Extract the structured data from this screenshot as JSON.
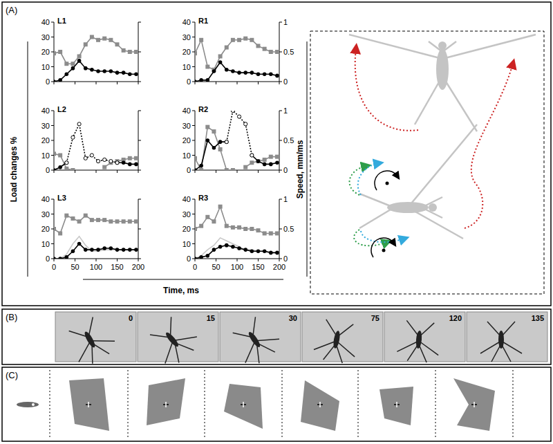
{
  "chart_data": [
    {
      "type": "line",
      "title": "L1",
      "x": [
        0,
        15,
        30,
        45,
        60,
        75,
        90,
        105,
        120,
        135,
        150,
        165,
        180,
        195
      ],
      "xlim": [
        0,
        200
      ],
      "xticks": [
        0,
        50,
        100,
        150,
        200
      ],
      "ylim": [
        0,
        40
      ],
      "yticks": [
        0,
        10,
        20,
        30,
        40
      ],
      "y2lim": [
        0,
        1
      ],
      "y2ticks": [
        0,
        0.5,
        1
      ],
      "series": [
        {
          "color": "#8c8c8c",
          "marker": "square",
          "values": [
            19,
            20,
            12,
            12,
            17,
            25,
            30,
            28,
            29,
            28,
            25,
            21,
            20,
            20
          ]
        },
        {
          "color": "#000000",
          "marker": "circle",
          "axis": "y2",
          "values": [
            0,
            0.025,
            0.125,
            0.225,
            0.35,
            0.225,
            0.2,
            0.175,
            0.175,
            0.175,
            0.15,
            0.15,
            0.125,
            0.125
          ]
        }
      ]
    },
    {
      "type": "line",
      "title": "R1",
      "x": [
        0,
        15,
        30,
        45,
        60,
        75,
        90,
        105,
        120,
        135,
        150,
        165,
        180,
        195
      ],
      "xlim": [
        0,
        200
      ],
      "xticks": [
        0,
        50,
        100,
        150,
        200
      ],
      "ylim": [
        0,
        40
      ],
      "yticks": [
        0,
        10,
        20,
        30,
        40
      ],
      "y2lim": [
        0,
        1
      ],
      "y2ticks": [
        0,
        0.5,
        1
      ],
      "series": [
        {
          "color": "#8c8c8c",
          "marker": "square",
          "values": [
            19,
            28,
            10,
            8,
            17,
            23,
            28,
            28,
            29,
            28,
            24,
            22,
            20,
            20
          ]
        },
        {
          "color": "#000000",
          "marker": "circle",
          "axis": "y2",
          "values": [
            0,
            0.025,
            0.025,
            0.175,
            0.325,
            0.2,
            0.175,
            0.15,
            0.15,
            0.15,
            0.125,
            0.125,
            0.125,
            0.1
          ]
        }
      ]
    },
    {
      "type": "line",
      "title": "L2",
      "x": [
        0,
        15,
        30,
        45,
        60,
        75,
        90,
        105,
        120,
        135,
        150,
        165,
        180,
        195
      ],
      "xlim": [
        0,
        200
      ],
      "xticks": [
        0,
        50,
        100,
        150,
        200
      ],
      "ylim": [
        0,
        40
      ],
      "yticks": [
        0,
        10,
        20,
        30,
        40
      ],
      "y2lim": [
        0,
        1
      ],
      "y2ticks": [
        0,
        0.5,
        1
      ],
      "series": [
        {
          "color": "#8c8c8c",
          "marker": "square",
          "values": [
            11,
            10,
            1,
            0,
            null,
            null,
            null,
            null,
            2,
            5,
            6,
            7,
            8,
            8
          ]
        },
        {
          "color": "#000000",
          "marker": "circle",
          "axis": "y2",
          "values": [
            0,
            0.05,
            0.125,
            null,
            null,
            null,
            null,
            null,
            null,
            null,
            0.125,
            0.125,
            0.1,
            0.1
          ]
        },
        {
          "color": "#000000",
          "marker": "open-circle",
          "line_style": "dotted",
          "axis": "y2",
          "values": [
            null,
            null,
            0.125,
            0.55,
            0.775,
            0.2,
            0.25,
            0.15,
            0.175,
            0.15,
            0.125,
            null,
            null,
            null
          ]
        }
      ]
    },
    {
      "type": "line",
      "title": "R2",
      "x": [
        0,
        15,
        30,
        45,
        60,
        75,
        90,
        105,
        120,
        135,
        150,
        165,
        180,
        195
      ],
      "xlim": [
        0,
        200
      ],
      "xticks": [
        0,
        50,
        100,
        150,
        200
      ],
      "ylim": [
        0,
        40
      ],
      "yticks": [
        0,
        10,
        20,
        30,
        40
      ],
      "y2lim": [
        0,
        1
      ],
      "y2ticks": [
        0,
        0.5,
        1
      ],
      "series": [
        {
          "color": "#8c8c8c",
          "marker": "square",
          "values": [
            8,
            0,
            29,
            26,
            14,
            0,
            0,
            null,
            2,
            5,
            6,
            7,
            9,
            9
          ]
        },
        {
          "color": "#000000",
          "marker": "circle",
          "axis": "y2",
          "values": [
            0,
            0.075,
            0.5,
            0.375,
            0.475,
            0.475,
            null,
            null,
            null,
            0.25,
            0.15,
            0.1,
            0.1,
            0.125
          ]
        },
        {
          "color": "#000000",
          "marker": "open-circle",
          "line_style": "dotted",
          "axis": "y2",
          "values": [
            null,
            null,
            null,
            null,
            null,
            0.475,
            1,
            0.9,
            0.775,
            0.25,
            null,
            null,
            null,
            null
          ]
        }
      ]
    },
    {
      "type": "line",
      "title": "L3",
      "x": [
        0,
        15,
        30,
        45,
        60,
        75,
        90,
        105,
        120,
        135,
        150,
        165,
        180,
        195
      ],
      "xlim": [
        0,
        200
      ],
      "xticks": [
        0,
        50,
        100,
        150,
        200
      ],
      "ylim": [
        0,
        40
      ],
      "yticks": [
        0,
        10,
        20,
        30,
        40
      ],
      "y2lim": [
        0,
        1
      ],
      "y2ticks": [
        0,
        0.5,
        1
      ],
      "series": [
        {
          "color": "#8c8c8c",
          "marker": "square",
          "values": [
            20,
            17,
            29,
            27,
            25,
            29,
            26,
            26,
            26,
            25,
            25,
            25,
            25,
            25
          ]
        },
        {
          "color": "#c8c8c8",
          "marker": "none",
          "axis": "y2",
          "values": [
            0,
            0,
            0.075,
            0.25,
            0.375,
            0.225,
            0.125,
            0.125,
            0.15,
            0.15,
            0.15,
            0.15,
            0.15,
            0.15
          ]
        },
        {
          "color": "#000000",
          "marker": "circle",
          "axis": "y2",
          "values": [
            0,
            0,
            0.025,
            0.125,
            0.25,
            0.15,
            0.15,
            0.15,
            0.175,
            0.175,
            0.15,
            0.15,
            0.15,
            0.15
          ]
        }
      ]
    },
    {
      "type": "line",
      "title": "R3",
      "x": [
        0,
        15,
        30,
        45,
        60,
        75,
        90,
        105,
        120,
        135,
        150,
        165,
        180,
        195
      ],
      "xlim": [
        0,
        200
      ],
      "xticks": [
        0,
        50,
        100,
        150,
        200
      ],
      "ylim": [
        0,
        40
      ],
      "yticks": [
        0,
        10,
        20,
        30,
        40
      ],
      "y2lim": [
        0,
        1
      ],
      "y2ticks": [
        0,
        0.5,
        1
      ],
      "series": [
        {
          "color": "#8c8c8c",
          "marker": "square",
          "values": [
            20,
            22,
            28,
            25,
            35,
            22,
            21,
            21,
            20,
            20,
            19,
            17,
            17,
            17
          ]
        },
        {
          "color": "#c8c8c8",
          "marker": "none",
          "axis": "y2",
          "values": [
            0,
            0.05,
            0.15,
            0.225,
            0.35,
            0.3,
            0.25,
            0.2,
            0.15,
            0.15,
            0.125,
            0.125,
            0.1,
            0.1
          ]
        },
        {
          "color": "#000000",
          "marker": "circle",
          "axis": "y2",
          "values": [
            0,
            0.025,
            0.05,
            0.15,
            0.2,
            0.225,
            0.2,
            0.175,
            0.15,
            0.125,
            0.125,
            0.125,
            0.1,
            0.1
          ]
        }
      ]
    }
  ],
  "figure": {
    "panel_labels": [
      "(A)",
      "(B)",
      "(C)"
    ],
    "ylabel": "Load changes %",
    "y2label": "Speed, mm/ms",
    "xlabel": "Time, ms",
    "frames": [
      0,
      15,
      30,
      75,
      120,
      135
    ]
  }
}
